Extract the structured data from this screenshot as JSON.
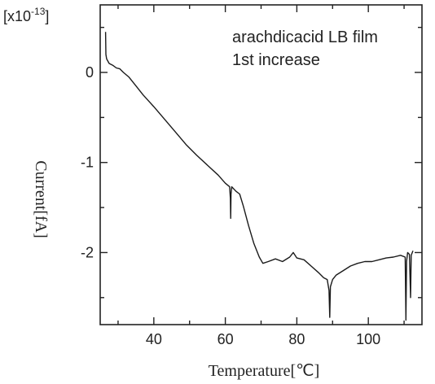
{
  "chart_data": {
    "type": "line",
    "title": "",
    "xlabel": "Temperature[℃]",
    "ylabel": "Current[fA]",
    "multiplier_base": "[x10",
    "multiplier_exp": "-13",
    "multiplier_close": "]",
    "annotation_line1": "arachdicacid LB film",
    "annotation_line2": "1st increase",
    "xlim": [
      25,
      115
    ],
    "ylim": [
      -2.8,
      0.75
    ],
    "x_ticks": [
      40,
      60,
      80,
      100
    ],
    "y_ticks": [
      0,
      -1,
      -2
    ],
    "grid": false,
    "series": [
      {
        "points": [
          [
            26.5,
            0.45
          ],
          [
            26.6,
            0.2
          ],
          [
            26.8,
            0.15
          ],
          [
            27.5,
            0.1
          ],
          [
            28.5,
            0.08
          ],
          [
            29.5,
            0.05
          ],
          [
            30.5,
            0.04
          ],
          [
            31.5,
            0.0
          ],
          [
            33,
            -0.05
          ],
          [
            35,
            -0.15
          ],
          [
            37,
            -0.25
          ],
          [
            40,
            -0.38
          ],
          [
            43,
            -0.52
          ],
          [
            46,
            -0.66
          ],
          [
            49,
            -0.8
          ],
          [
            52,
            -0.92
          ],
          [
            55,
            -1.03
          ],
          [
            58,
            -1.14
          ],
          [
            60,
            -1.23
          ],
          [
            61.2,
            -1.27
          ],
          [
            61.4,
            -1.4
          ],
          [
            61.5,
            -1.62
          ],
          [
            61.6,
            -1.35
          ],
          [
            61.8,
            -1.27
          ],
          [
            63,
            -1.32
          ],
          [
            64,
            -1.35
          ],
          [
            65,
            -1.48
          ],
          [
            66.5,
            -1.7
          ],
          [
            68,
            -1.9
          ],
          [
            69.5,
            -2.05
          ],
          [
            70.5,
            -2.12
          ],
          [
            72,
            -2.1
          ],
          [
            74,
            -2.07
          ],
          [
            76,
            -2.1
          ],
          [
            78,
            -2.05
          ],
          [
            79,
            -2.0
          ],
          [
            80,
            -2.06
          ],
          [
            82,
            -2.08
          ],
          [
            84,
            -2.15
          ],
          [
            86,
            -2.22
          ],
          [
            87.5,
            -2.28
          ],
          [
            88.5,
            -2.3
          ],
          [
            89,
            -2.42
          ],
          [
            89.2,
            -2.72
          ],
          [
            89.4,
            -2.38
          ],
          [
            90,
            -2.3
          ],
          [
            91,
            -2.25
          ],
          [
            93,
            -2.2
          ],
          [
            95,
            -2.15
          ],
          [
            97,
            -2.12
          ],
          [
            99,
            -2.1
          ],
          [
            101,
            -2.1
          ],
          [
            103,
            -2.08
          ],
          [
            105,
            -2.06
          ],
          [
            107,
            -2.05
          ],
          [
            109,
            -2.03
          ],
          [
            110.3,
            -2.05
          ],
          [
            110.5,
            -2.75
          ],
          [
            110.7,
            -2.1
          ],
          [
            111,
            -2.0
          ],
          [
            111.5,
            -2.02
          ],
          [
            111.8,
            -2.5
          ],
          [
            112,
            -2.03
          ],
          [
            112.5,
            -1.98
          ]
        ]
      }
    ]
  }
}
